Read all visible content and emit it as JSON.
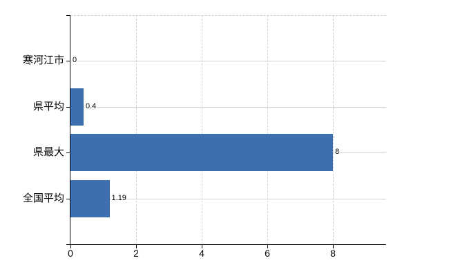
{
  "chart_data": {
    "type": "bar",
    "orientation": "horizontal",
    "title": "",
    "xlabel": "",
    "ylabel": "",
    "categories": [
      "寒河江市",
      "県平均",
      "県最大",
      "全国平均"
    ],
    "values": [
      0,
      0.4,
      8,
      1.19
    ],
    "value_labels": [
      "0",
      "0.4",
      "8",
      "1.19"
    ],
    "x_tick_labels": [
      "0",
      "2",
      "4",
      "6",
      "8"
    ],
    "x_tick_values": [
      0,
      2,
      4,
      6,
      8
    ],
    "xlim": [
      0,
      9.62
    ],
    "grid": true,
    "legend_position": "none",
    "colors": {
      "bar": "#3d6eaf",
      "axis": "#000000",
      "text": "#000000",
      "h_gridline": "#ccd6cc",
      "v_gridline": "#d4d4d4",
      "top_border": "#cccccc",
      "background": "#ffffff"
    }
  }
}
